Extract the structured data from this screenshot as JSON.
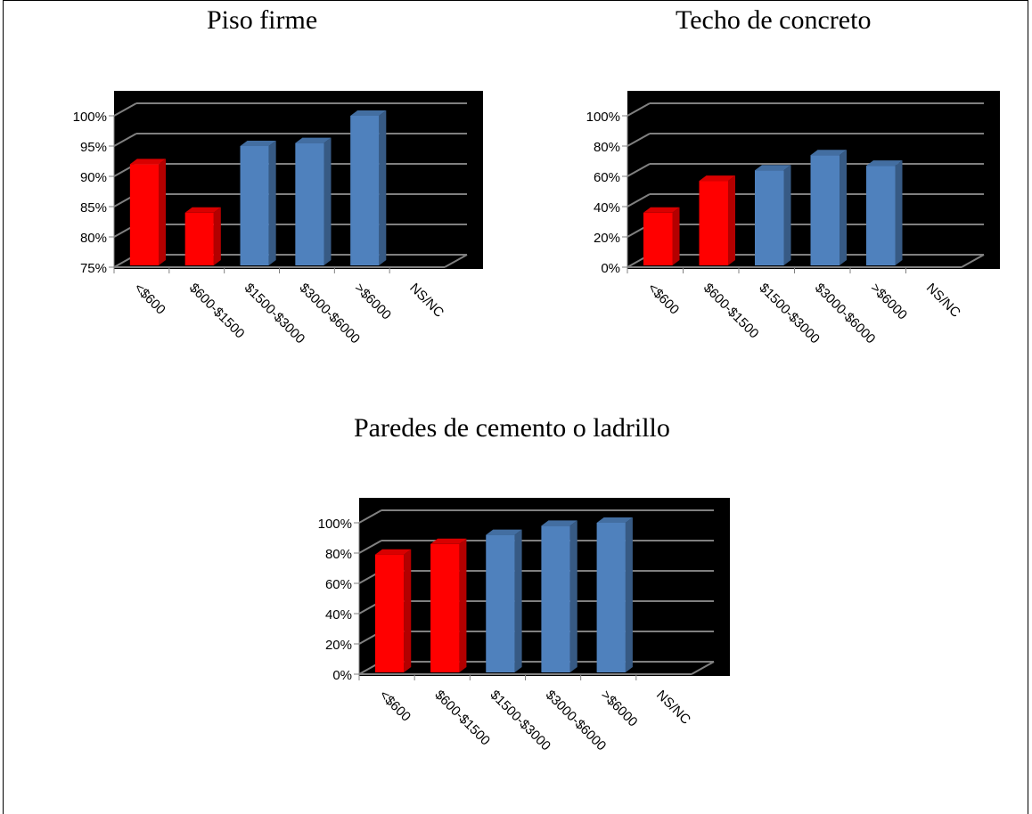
{
  "chart_data": [
    {
      "type": "bar",
      "title": "Piso firme",
      "categories": [
        "<$600",
        "$600-$1500",
        "$1500-$3000",
        "$3000-$6000",
        ">$6000",
        "NS/NC"
      ],
      "values": [
        92,
        84,
        95,
        95.5,
        100,
        null
      ],
      "y_ticks": [
        "75%",
        "80%",
        "85%",
        "90%",
        "95%",
        "100%"
      ],
      "ylim": [
        75,
        100
      ],
      "bar_colors": [
        "#ff0000",
        "#ff0000",
        "#4f81bd",
        "#4f81bd",
        "#4f81bd",
        "#4f81bd"
      ],
      "plot_background": "#000000",
      "grid": true
    },
    {
      "type": "bar",
      "title": "Techo de concreto",
      "categories": [
        "<$600",
        "$600-$1500",
        "$1500-$3000",
        "$3000-$6000",
        ">$6000",
        "NS/NC"
      ],
      "values": [
        36,
        57,
        64,
        74,
        67,
        null
      ],
      "y_ticks": [
        "0%",
        "20%",
        "40%",
        "60%",
        "80%",
        "100%"
      ],
      "ylim": [
        0,
        100
      ],
      "bar_colors": [
        "#ff0000",
        "#ff0000",
        "#4f81bd",
        "#4f81bd",
        "#4f81bd",
        "#4f81bd"
      ],
      "plot_background": "#000000",
      "grid": true
    },
    {
      "type": "bar",
      "title": "Paredes de cemento o ladrillo",
      "categories": [
        "<$600",
        "$600-$1500",
        "$1500-$3000",
        "$3000-$6000",
        ">$6000",
        "NS/NC"
      ],
      "values": [
        79,
        86,
        92,
        98,
        100,
        null
      ],
      "y_ticks": [
        "0%",
        "20%",
        "40%",
        "60%",
        "80%",
        "100%"
      ],
      "ylim": [
        0,
        100
      ],
      "bar_colors": [
        "#ff0000",
        "#ff0000",
        "#4f81bd",
        "#4f81bd",
        "#4f81bd",
        "#4f81bd"
      ],
      "plot_background": "#000000",
      "grid": true
    }
  ]
}
